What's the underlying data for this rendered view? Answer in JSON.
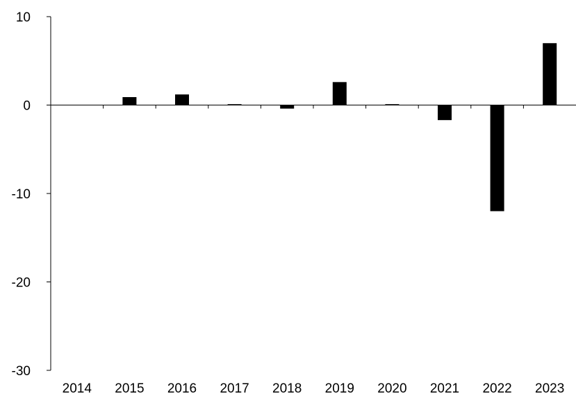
{
  "chart_data": {
    "type": "bar",
    "categories": [
      "2014",
      "2015",
      "2016",
      "2017",
      "2018",
      "2019",
      "2020",
      "2021",
      "2022",
      "2023"
    ],
    "values": [
      0,
      0.9,
      1.2,
      0.1,
      -0.4,
      2.6,
      0.1,
      -1.7,
      -12.0,
      7.0
    ],
    "ylim": [
      -30,
      10
    ],
    "yticks": [
      10,
      0,
      -10,
      -20,
      -30
    ],
    "ytick_labels": [
      "10",
      "0",
      "-10",
      "-20",
      "-30"
    ],
    "grid": false,
    "legend": "none",
    "bar_color": "#000000",
    "axis_color": "#000000"
  }
}
